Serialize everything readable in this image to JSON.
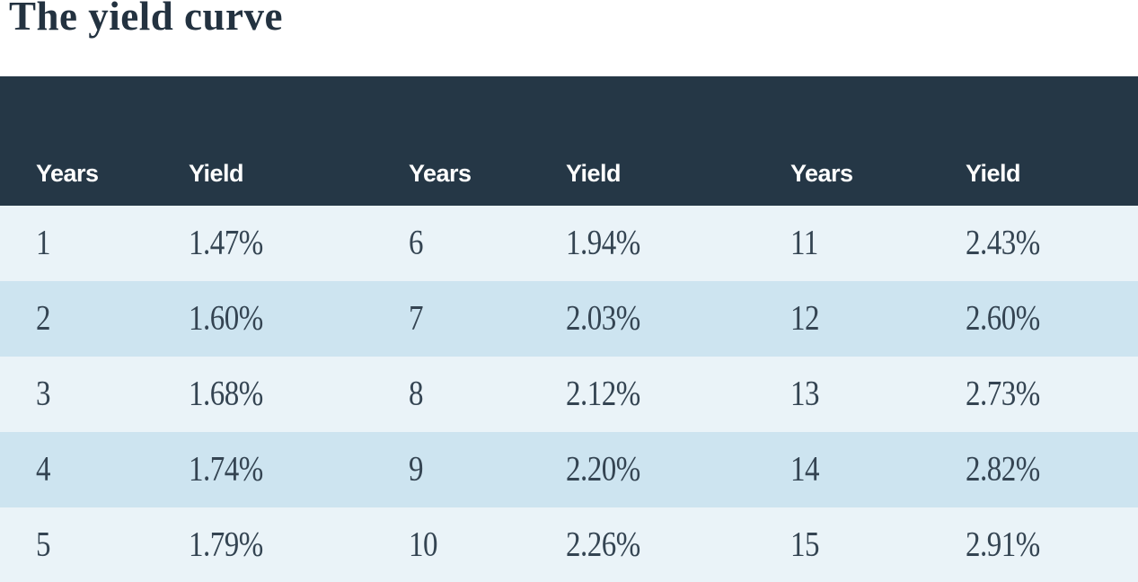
{
  "title": "The yield curve",
  "table": {
    "header_labels": [
      "Years",
      "Yield",
      "Years",
      "Yield",
      "Years",
      "Yield"
    ],
    "rows": [
      [
        "1",
        "1.47%",
        "6",
        "1.94%",
        "11",
        "2.43%"
      ],
      [
        "2",
        "1.60%",
        "7",
        "2.03%",
        "12",
        "2.60%"
      ],
      [
        "3",
        "1.68%",
        "8",
        "2.12%",
        "13",
        "2.73%"
      ],
      [
        "4",
        "1.74%",
        "9",
        "2.20%",
        "14",
        "2.82%"
      ],
      [
        "5",
        "1.79%",
        "10",
        "2.26%",
        "15",
        "2.91%"
      ]
    ]
  },
  "colors": {
    "header_background": "#253746",
    "row_light": "#eaf3f8",
    "row_shaded": "#cde4f0",
    "header_text": "#ffffff",
    "body_text": "#344452",
    "title_text": "#233240",
    "page_background": "#ffffff"
  },
  "chart_data": {
    "type": "table",
    "title": "The yield curve",
    "columns": [
      "Years",
      "Yield",
      "Years",
      "Yield",
      "Years",
      "Yield"
    ],
    "rows": [
      [
        "1",
        "1.47%",
        "6",
        "1.94%",
        "11",
        "2.43%"
      ],
      [
        "2",
        "1.60%",
        "7",
        "2.03%",
        "12",
        "2.60%"
      ],
      [
        "3",
        "1.68%",
        "8",
        "2.12%",
        "13",
        "2.73%"
      ],
      [
        "4",
        "1.74%",
        "9",
        "2.20%",
        "14",
        "2.82%"
      ],
      [
        "5",
        "1.79%",
        "10",
        "2.26%",
        "15",
        "2.91%"
      ]
    ],
    "series": {
      "years": [
        1,
        2,
        3,
        4,
        5,
        6,
        7,
        8,
        9,
        10,
        11,
        12,
        13,
        14,
        15
      ],
      "yields_pct": [
        1.47,
        1.6,
        1.68,
        1.74,
        1.79,
        1.94,
        2.03,
        2.12,
        2.2,
        2.26,
        2.43,
        2.6,
        2.73,
        2.82,
        2.91
      ]
    }
  }
}
